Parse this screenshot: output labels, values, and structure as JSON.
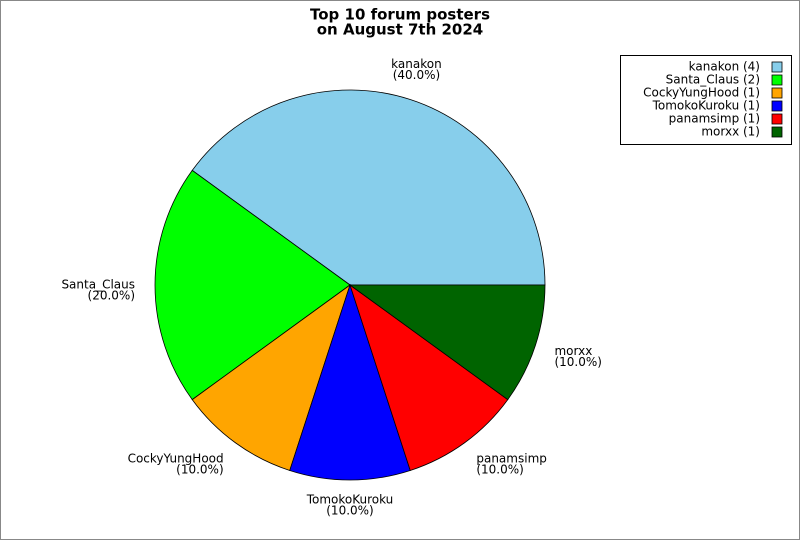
{
  "chart_data": {
    "type": "pie",
    "title": [
      "Top 10 forum posters",
      "on August 7th 2024"
    ],
    "categories": [
      "kanakon",
      "Santa_Claus",
      "CockyYungHood",
      "TomokoKuroku",
      "panamsimp",
      "morxx"
    ],
    "values": [
      40,
      20,
      10,
      10,
      10,
      10
    ],
    "value_labels": [
      "(40.0%)",
      "(20.0%)",
      "(10.0%)",
      "(10.0%)",
      "(10.0%)",
      "(10.0%)"
    ],
    "colors": [
      "#87ceeb",
      "#00ff00",
      "#ffa500",
      "#0000ff",
      "#ff0000",
      "#006400"
    ],
    "legend": [
      "kanakon (4)",
      "Santa_Claus (2)",
      "CockyYungHood (1)",
      "TomokoKuroku (1)",
      "panamsimp (1)",
      "morxx (1)"
    ],
    "legend_position": "top-right"
  }
}
